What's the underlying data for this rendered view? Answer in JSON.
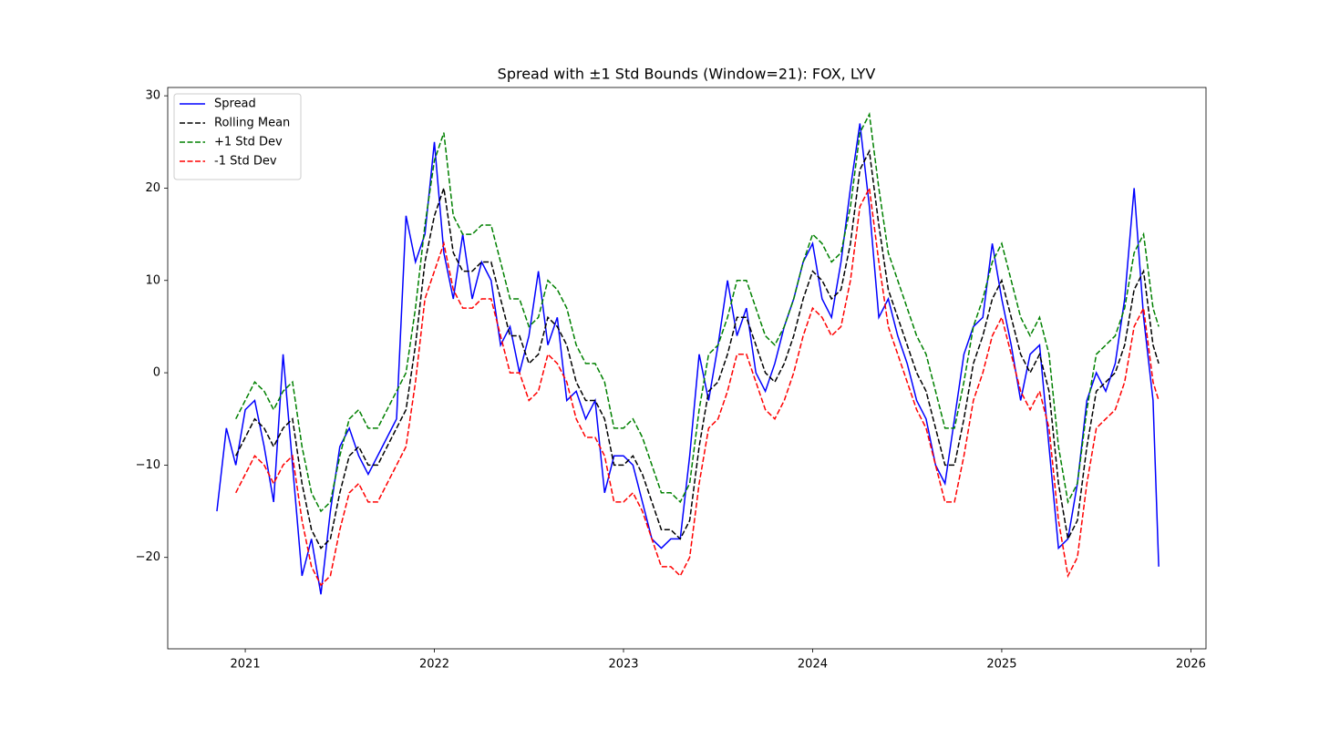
{
  "chart_data": {
    "type": "line",
    "title": "Spread with ±1 Std Bounds (Window=21): FOX, LYV",
    "legend": "upper left",
    "grid": false,
    "xlim": [
      2020.59,
      2026.08
    ],
    "xticks": [
      2021,
      2022,
      2023,
      2024,
      2025,
      2026
    ],
    "ylim": [
      -29.9,
      30.9
    ],
    "yticks": [
      {
        "value": -20,
        "label": "−20"
      },
      {
        "value": -10,
        "label": "−10"
      },
      0,
      10,
      20,
      30
    ],
    "x": [
      2020.85,
      2020.9,
      2020.95,
      2021.0,
      2021.05,
      2021.1,
      2021.15,
      2021.2,
      2021.25,
      2021.3,
      2021.35,
      2021.4,
      2021.45,
      2021.5,
      2021.55,
      2021.6,
      2021.65,
      2021.7,
      2021.75,
      2021.8,
      2021.85,
      2021.9,
      2021.95,
      2022.0,
      2022.05,
      2022.1,
      2022.15,
      2022.2,
      2022.25,
      2022.3,
      2022.35,
      2022.4,
      2022.45,
      2022.5,
      2022.55,
      2022.6,
      2022.65,
      2022.7,
      2022.75,
      2022.8,
      2022.85,
      2022.9,
      2022.95,
      2023.0,
      2023.05,
      2023.1,
      2023.15,
      2023.2,
      2023.25,
      2023.3,
      2023.35,
      2023.4,
      2023.45,
      2023.5,
      2023.55,
      2023.6,
      2023.65,
      2023.7,
      2023.75,
      2023.8,
      2023.85,
      2023.9,
      2023.95,
      2024.0,
      2024.05,
      2024.1,
      2024.15,
      2024.2,
      2024.25,
      2024.3,
      2024.35,
      2024.4,
      2024.45,
      2024.5,
      2024.55,
      2024.6,
      2024.65,
      2024.7,
      2024.75,
      2024.8,
      2024.85,
      2024.9,
      2024.95,
      2025.0,
      2025.05,
      2025.1,
      2025.15,
      2025.2,
      2025.25,
      2025.3,
      2025.35,
      2025.4,
      2025.45,
      2025.5,
      2025.55,
      2025.6,
      2025.65,
      2025.7,
      2025.75,
      2025.8,
      2025.83
    ],
    "series": [
      {
        "name": "Spread",
        "color": "#0000ff",
        "style": "solid",
        "values": [
          -15,
          -6,
          -10,
          -4,
          -3,
          -8,
          -14,
          2,
          -10,
          -22,
          -18,
          -24,
          -15,
          -8,
          -6,
          -9,
          -11,
          -9,
          -7,
          -5,
          17,
          12,
          15,
          25,
          13,
          8,
          15,
          8,
          12,
          10,
          3,
          5,
          0,
          4,
          11,
          3,
          6,
          -3,
          -2,
          -5,
          -3,
          -13,
          -9,
          -9,
          -10,
          -14,
          -18,
          -19,
          -18,
          -18,
          -9,
          2,
          -3,
          3,
          10,
          4,
          7,
          0,
          -2,
          1,
          5,
          8,
          12,
          14,
          8,
          6,
          12,
          20,
          27,
          18,
          6,
          8,
          4,
          1,
          -3,
          -5,
          -10,
          -12,
          -5,
          2,
          5,
          6,
          14,
          8,
          3,
          -3,
          2,
          3,
          -8,
          -19,
          -18,
          -12,
          -3,
          0,
          -2,
          1,
          8,
          20,
          6,
          -3,
          -21
        ]
      },
      {
        "name": "Rolling Mean",
        "color": "#000000",
        "style": "dashed",
        "values": [
          null,
          null,
          -9,
          -7,
          -5,
          -6,
          -8,
          -6,
          -5,
          -12,
          -17,
          -19,
          -18,
          -13,
          -9,
          -8,
          -10,
          -10,
          -8,
          -6,
          -4,
          3,
          12,
          17,
          20,
          13,
          11,
          11,
          12,
          12,
          8,
          4,
          4,
          1,
          2,
          6,
          5,
          3,
          -1,
          -3,
          -3,
          -5,
          -10,
          -10,
          -9,
          -11,
          -14,
          -17,
          -17,
          -18,
          -16,
          -8,
          -2,
          -1,
          2,
          6,
          6,
          3,
          0,
          -1,
          1,
          4,
          8,
          11,
          10,
          8,
          9,
          14,
          22,
          24,
          16,
          9,
          6,
          3,
          0,
          -2,
          -6,
          -10,
          -10,
          -5,
          1,
          4,
          8,
          10,
          6,
          2,
          0,
          2,
          -2,
          -12,
          -18,
          -16,
          -8,
          -2,
          -1,
          0,
          3,
          9,
          11,
          3,
          1
        ]
      },
      {
        "name": "+1 Std Dev",
        "color": "#008000",
        "style": "dashed",
        "values": [
          null,
          null,
          -5,
          -3,
          -1,
          -2,
          -4,
          -2,
          -1,
          -8,
          -13,
          -15,
          -14,
          -9,
          -5,
          -4,
          -6,
          -6,
          -4,
          -2,
          0,
          7,
          16,
          23,
          26,
          17,
          15,
          15,
          16,
          16,
          12,
          8,
          8,
          5,
          6,
          10,
          9,
          7,
          3,
          1,
          1,
          -1,
          -6,
          -6,
          -5,
          -7,
          -10,
          -13,
          -13,
          -14,
          -12,
          -4,
          2,
          3,
          6,
          10,
          10,
          7,
          4,
          3,
          5,
          8,
          12,
          15,
          14,
          12,
          13,
          18,
          26,
          28,
          20,
          13,
          10,
          7,
          4,
          2,
          -2,
          -6,
          -6,
          -1,
          5,
          8,
          12,
          14,
          10,
          6,
          4,
          6,
          2,
          -8,
          -14,
          -12,
          -4,
          2,
          3,
          4,
          7,
          13,
          15,
          7,
          5
        ]
      },
      {
        "name": "-1 Std Dev",
        "color": "#ff0000",
        "style": "dashed",
        "values": [
          null,
          null,
          -13,
          -11,
          -9,
          -10,
          -12,
          -10,
          -9,
          -16,
          -21,
          -23,
          -22,
          -17,
          -13,
          -12,
          -14,
          -14,
          -12,
          -10,
          -8,
          -1,
          8,
          11,
          14,
          9,
          7,
          7,
          8,
          8,
          4,
          0,
          0,
          -3,
          -2,
          2,
          1,
          -1,
          -5,
          -7,
          -7,
          -9,
          -14,
          -14,
          -13,
          -15,
          -18,
          -21,
          -21,
          -22,
          -20,
          -12,
          -6,
          -5,
          -2,
          2,
          2,
          -1,
          -4,
          -5,
          -3,
          0,
          4,
          7,
          6,
          4,
          5,
          10,
          18,
          20,
          12,
          5,
          2,
          -1,
          -4,
          -6,
          -10,
          -14,
          -14,
          -9,
          -3,
          0,
          4,
          6,
          2,
          -2,
          -4,
          -2,
          -6,
          -16,
          -22,
          -20,
          -12,
          -6,
          -5,
          -4,
          -1,
          5,
          7,
          -1,
          -3
        ]
      }
    ]
  }
}
